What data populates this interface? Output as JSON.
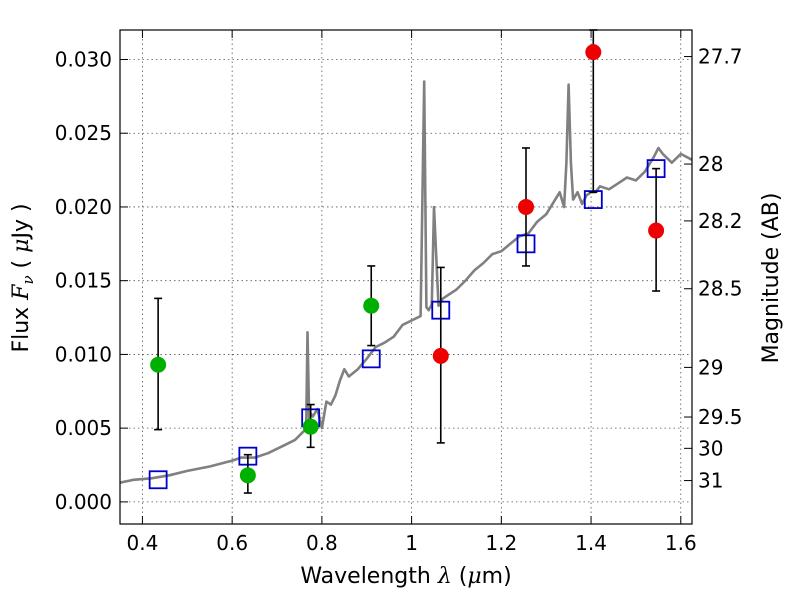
{
  "chart_data": {
    "type": "scatter",
    "xlabel": {
      "prefix": "Wavelength  ",
      "symbol": "λ",
      "suffix": " (",
      "unit_mu": "μ",
      "unit": "m)"
    },
    "ylabel": {
      "prefix": "Flux  ",
      "symbol": "F",
      "sub": "ν",
      "suffix": "  ( ",
      "unit_mu": "μ",
      "unit": "Jy )"
    },
    "y2label": "Magnitude (AB)",
    "xlim": [
      0.35,
      1.625
    ],
    "ylim": [
      -0.0015,
      0.032
    ],
    "grid": true,
    "x_ticks": [
      "0.4",
      "0.6",
      "0.8",
      "1",
      "1.2",
      "1.4",
      "1.6"
    ],
    "y_ticks": [
      "0.000",
      "0.005",
      "0.010",
      "0.015",
      "0.020",
      "0.025",
      "0.030"
    ],
    "mag_ticks": [
      "27.7",
      "28",
      "28.2",
      "28.5",
      "29",
      "29.5",
      "30",
      "31"
    ],
    "colors": {
      "spectrum": "#808080",
      "model": "#0000cc",
      "green": "#00b000",
      "red": "#ee0000"
    },
    "spectrum": {
      "x": [
        0.35,
        0.38,
        0.42,
        0.46,
        0.5,
        0.55,
        0.6,
        0.62,
        0.65,
        0.68,
        0.7,
        0.72,
        0.74,
        0.76,
        0.765,
        0.768,
        0.772,
        0.775,
        0.78,
        0.79,
        0.8,
        0.81,
        0.82,
        0.83,
        0.84,
        0.85,
        0.86,
        0.88,
        0.9,
        0.92,
        0.94,
        0.96,
        0.98,
        1.0,
        1.02,
        1.028,
        1.033,
        1.038,
        1.045,
        1.05,
        1.06,
        1.065,
        1.07,
        1.08,
        1.1,
        1.12,
        1.14,
        1.16,
        1.18,
        1.2,
        1.22,
        1.24,
        1.26,
        1.28,
        1.3,
        1.32,
        1.33,
        1.34,
        1.345,
        1.35,
        1.355,
        1.36,
        1.37,
        1.38,
        1.39,
        1.4,
        1.41,
        1.42,
        1.44,
        1.46,
        1.48,
        1.5,
        1.52,
        1.54,
        1.55,
        1.56,
        1.58,
        1.6,
        1.625
      ],
      "y": [
        0.0013,
        0.0015,
        0.0016,
        0.0018,
        0.0021,
        0.0024,
        0.0028,
        0.003,
        0.003,
        0.0033,
        0.0036,
        0.0039,
        0.0042,
        0.0048,
        0.005,
        0.0115,
        0.0052,
        0.006,
        0.0058,
        0.0063,
        0.005,
        0.0068,
        0.0066,
        0.0072,
        0.0082,
        0.009,
        0.0085,
        0.009,
        0.0097,
        0.0105,
        0.0108,
        0.0112,
        0.012,
        0.0123,
        0.0126,
        0.0285,
        0.0132,
        0.013,
        0.0134,
        0.02,
        0.0133,
        0.0136,
        0.0138,
        0.014,
        0.0144,
        0.015,
        0.0157,
        0.0162,
        0.0168,
        0.017,
        0.0175,
        0.018,
        0.0182,
        0.019,
        0.0195,
        0.0205,
        0.021,
        0.02,
        0.023,
        0.0283,
        0.023,
        0.0205,
        0.021,
        0.0202,
        0.0208,
        0.021,
        0.021,
        0.0214,
        0.0212,
        0.0216,
        0.022,
        0.0218,
        0.0224,
        0.0234,
        0.024,
        0.0236,
        0.023,
        0.0236,
        0.0232
      ]
    },
    "model_points": {
      "x": [
        0.435,
        0.635,
        0.775,
        0.91,
        1.065,
        1.255,
        1.405,
        1.545
      ],
      "y": [
        0.0015,
        0.0031,
        0.0057,
        0.0097,
        0.013,
        0.0175,
        0.0205,
        0.0226
      ]
    },
    "green_points": {
      "x": [
        0.435,
        0.635,
        0.775,
        0.91
      ],
      "y": [
        0.0093,
        0.0018,
        0.0051,
        0.0133
      ],
      "err_low": [
        0.0049,
        0.0006,
        0.0037,
        0.0106
      ],
      "err_high": [
        0.0138,
        0.0032,
        0.0066,
        0.016
      ]
    },
    "red_points": {
      "x": [
        1.065,
        1.255,
        1.405,
        1.545
      ],
      "y": [
        0.0099,
        0.02,
        0.0305,
        0.0184
      ],
      "err_low": [
        0.004,
        0.016,
        0.021,
        0.0143
      ],
      "err_high": [
        0.0159,
        0.024,
        0.032,
        0.0226
      ]
    }
  }
}
